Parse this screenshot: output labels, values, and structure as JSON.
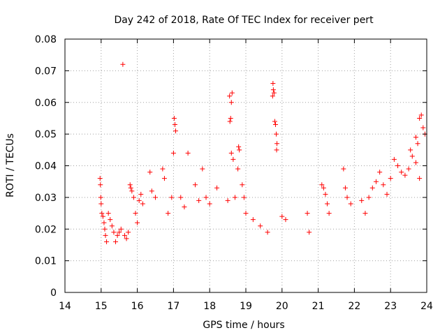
{
  "chart_data": {
    "type": "scatter",
    "title": "Day 242 of 2018, Rate Of TEC Index for receiver pert",
    "xlabel": "GPS time / hours",
    "ylabel": "ROTI / TECUs",
    "xlim": [
      14,
      24
    ],
    "ylim": [
      0,
      0.08
    ],
    "xticks": [
      14,
      15,
      16,
      17,
      18,
      19,
      20,
      21,
      22,
      23,
      24
    ],
    "yticks": [
      0,
      0.01,
      0.02,
      0.03,
      0.04,
      0.05,
      0.06,
      0.07,
      0.08
    ],
    "ytick_labels": [
      "0",
      "0.01",
      "0.02",
      "0.03",
      "0.04",
      "0.05",
      "0.06",
      "0.07",
      "0.08"
    ],
    "xtick_labels": [
      "14",
      "15",
      "16",
      "17",
      "18",
      "19",
      "20",
      "21",
      "22",
      "23",
      "24"
    ],
    "grid": true,
    "marker": "+",
    "color": "#ff0000",
    "series": [
      {
        "name": "ROTI",
        "points": [
          [
            14.97,
            0.036
          ],
          [
            14.98,
            0.034
          ],
          [
            14.99,
            0.03
          ],
          [
            15.0,
            0.028
          ],
          [
            15.02,
            0.025
          ],
          [
            15.05,
            0.024
          ],
          [
            15.08,
            0.022
          ],
          [
            15.1,
            0.02
          ],
          [
            15.12,
            0.018
          ],
          [
            15.15,
            0.016
          ],
          [
            15.2,
            0.025
          ],
          [
            15.25,
            0.023
          ],
          [
            15.3,
            0.021
          ],
          [
            15.35,
            0.019
          ],
          [
            15.4,
            0.016
          ],
          [
            15.45,
            0.018
          ],
          [
            15.5,
            0.019
          ],
          [
            15.55,
            0.02
          ],
          [
            15.6,
            0.072
          ],
          [
            15.65,
            0.018
          ],
          [
            15.7,
            0.017
          ],
          [
            15.75,
            0.019
          ],
          [
            15.8,
            0.034
          ],
          [
            15.82,
            0.033
          ],
          [
            15.85,
            0.032
          ],
          [
            15.9,
            0.03
          ],
          [
            15.95,
            0.025
          ],
          [
            16.0,
            0.022
          ],
          [
            16.05,
            0.029
          ],
          [
            16.1,
            0.031
          ],
          [
            16.15,
            0.028
          ],
          [
            16.35,
            0.038
          ],
          [
            16.4,
            0.032
          ],
          [
            16.5,
            0.03
          ],
          [
            16.7,
            0.039
          ],
          [
            16.75,
            0.036
          ],
          [
            16.85,
            0.025
          ],
          [
            16.95,
            0.03
          ],
          [
            17.0,
            0.044
          ],
          [
            17.02,
            0.055
          ],
          [
            17.04,
            0.053
          ],
          [
            17.06,
            0.051
          ],
          [
            17.2,
            0.03
          ],
          [
            17.3,
            0.027
          ],
          [
            17.4,
            0.044
          ],
          [
            17.6,
            0.034
          ],
          [
            17.7,
            0.029
          ],
          [
            17.8,
            0.039
          ],
          [
            17.9,
            0.03
          ],
          [
            18.0,
            0.028
          ],
          [
            18.2,
            0.033
          ],
          [
            18.5,
            0.029
          ],
          [
            18.55,
            0.062
          ],
          [
            18.6,
            0.06
          ],
          [
            18.62,
            0.063
          ],
          [
            18.58,
            0.055
          ],
          [
            18.56,
            0.054
          ],
          [
            18.6,
            0.044
          ],
          [
            18.65,
            0.042
          ],
          [
            18.7,
            0.03
          ],
          [
            18.8,
            0.046
          ],
          [
            18.82,
            0.045
          ],
          [
            18.78,
            0.039
          ],
          [
            18.9,
            0.034
          ],
          [
            18.95,
            0.03
          ],
          [
            19.0,
            0.025
          ],
          [
            19.2,
            0.023
          ],
          [
            19.4,
            0.021
          ],
          [
            19.6,
            0.019
          ],
          [
            19.75,
            0.066
          ],
          [
            19.76,
            0.064
          ],
          [
            19.74,
            0.062
          ],
          [
            19.78,
            0.063
          ],
          [
            19.8,
            0.054
          ],
          [
            19.82,
            0.053
          ],
          [
            19.84,
            0.05
          ],
          [
            19.86,
            0.047
          ],
          [
            19.85,
            0.045
          ],
          [
            20.0,
            0.024
          ],
          [
            20.1,
            0.023
          ],
          [
            20.7,
            0.025
          ],
          [
            20.75,
            0.019
          ],
          [
            21.1,
            0.034
          ],
          [
            21.15,
            0.033
          ],
          [
            21.2,
            0.031
          ],
          [
            21.25,
            0.028
          ],
          [
            21.3,
            0.025
          ],
          [
            21.7,
            0.039
          ],
          [
            21.75,
            0.033
          ],
          [
            21.8,
            0.03
          ],
          [
            21.9,
            0.028
          ],
          [
            22.2,
            0.029
          ],
          [
            22.3,
            0.025
          ],
          [
            22.4,
            0.03
          ],
          [
            22.5,
            0.033
          ],
          [
            22.6,
            0.035
          ],
          [
            22.7,
            0.038
          ],
          [
            22.8,
            0.034
          ],
          [
            22.9,
            0.031
          ],
          [
            23.0,
            0.036
          ],
          [
            23.1,
            0.042
          ],
          [
            23.2,
            0.04
          ],
          [
            23.3,
            0.038
          ],
          [
            23.4,
            0.037
          ],
          [
            23.5,
            0.039
          ],
          [
            23.55,
            0.045
          ],
          [
            23.6,
            0.043
          ],
          [
            23.7,
            0.049
          ],
          [
            23.75,
            0.047
          ],
          [
            23.8,
            0.055
          ],
          [
            23.85,
            0.056
          ],
          [
            23.9,
            0.052
          ],
          [
            23.95,
            0.05
          ],
          [
            23.7,
            0.041
          ],
          [
            23.8,
            0.036
          ]
        ]
      }
    ]
  }
}
